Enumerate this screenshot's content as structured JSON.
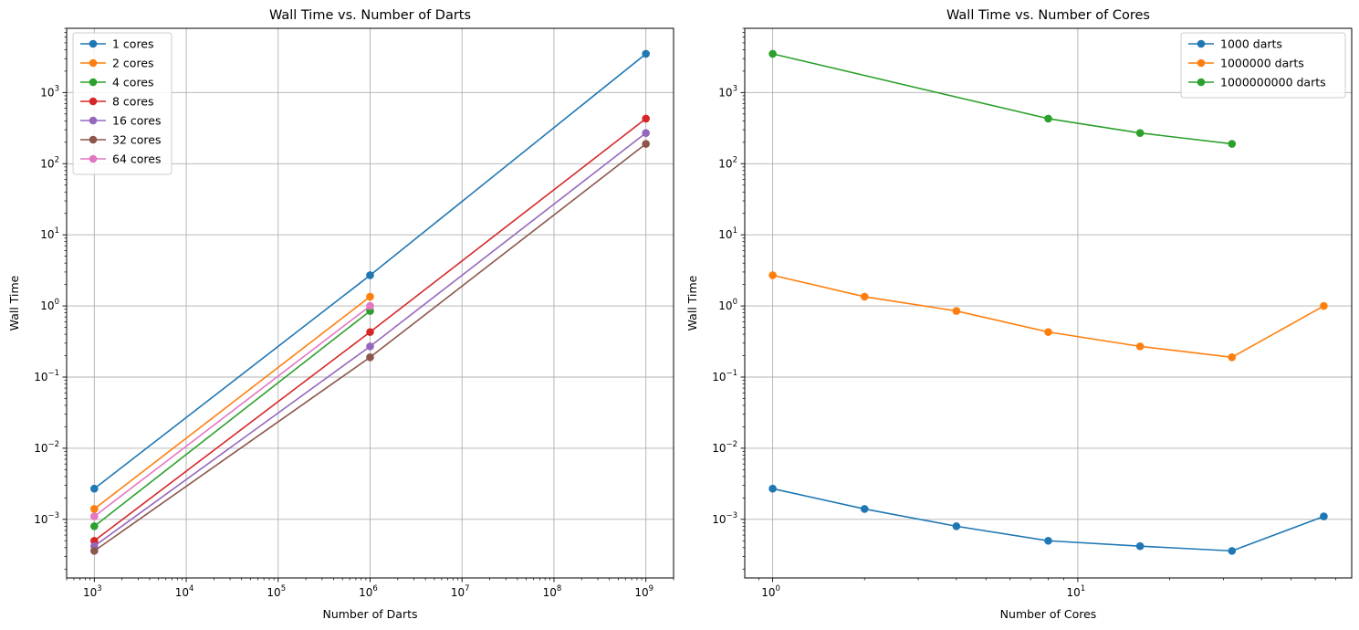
{
  "chart_data": [
    {
      "type": "line",
      "title": "Wall Time vs. Number of Darts",
      "xlabel": "Number of Darts",
      "ylabel": "Wall Time",
      "xscale": "log",
      "yscale": "log",
      "xlim": [
        500,
        2000000000
      ],
      "ylim": [
        0.00015,
        8000
      ],
      "grid": true,
      "legend": "upper-left",
      "x_ticks": [
        {
          "value": 1000,
          "mant": "10",
          "exp": "3"
        },
        {
          "value": 10000,
          "mant": "10",
          "exp": "4"
        },
        {
          "value": 100000,
          "mant": "10",
          "exp": "5"
        },
        {
          "value": 1000000,
          "mant": "10",
          "exp": "6"
        },
        {
          "value": 10000000,
          "mant": "10",
          "exp": "7"
        },
        {
          "value": 100000000,
          "mant": "10",
          "exp": "8"
        },
        {
          "value": 1000000000,
          "mant": "10",
          "exp": "9"
        }
      ],
      "y_ticks": [
        {
          "value": 0.001,
          "mant": "10",
          "exp": "−3"
        },
        {
          "value": 0.01,
          "mant": "10",
          "exp": "−2"
        },
        {
          "value": 0.1,
          "mant": "10",
          "exp": "−1"
        },
        {
          "value": 1,
          "mant": "10",
          "exp": "0"
        },
        {
          "value": 10,
          "mant": "10",
          "exp": "1"
        },
        {
          "value": 100,
          "mant": "10",
          "exp": "2"
        },
        {
          "value": 1000,
          "mant": "10",
          "exp": "3"
        }
      ],
      "series": [
        {
          "name": "1 cores",
          "color": "#1f77b4",
          "x": [
            1000,
            1000000,
            1000000000
          ],
          "y": [
            0.0027,
            2.7,
            3500
          ]
        },
        {
          "name": "2 cores",
          "color": "#ff7f0e",
          "x": [
            1000,
            1000000
          ],
          "y": [
            0.0014,
            1.35
          ]
        },
        {
          "name": "4 cores",
          "color": "#2ca02c",
          "x": [
            1000,
            1000000
          ],
          "y": [
            0.0008,
            0.85
          ]
        },
        {
          "name": "8 cores",
          "color": "#d62728",
          "x": [
            1000,
            1000000,
            1000000000
          ],
          "y": [
            0.0005,
            0.43,
            430
          ]
        },
        {
          "name": "16 cores",
          "color": "#9467bd",
          "x": [
            1000,
            1000000,
            1000000000
          ],
          "y": [
            0.00042,
            0.27,
            270
          ]
        },
        {
          "name": "32 cores",
          "color": "#8c564b",
          "x": [
            1000,
            1000000,
            1000000000
          ],
          "y": [
            0.00036,
            0.19,
            190
          ]
        },
        {
          "name": "64 cores",
          "color": "#e377c2",
          "x": [
            1000,
            1000000
          ],
          "y": [
            0.0011,
            1.0
          ]
        }
      ]
    },
    {
      "type": "line",
      "title": "Wall Time vs. Number of Cores",
      "xlabel": "Number of Cores",
      "ylabel": "Wall Time",
      "xscale": "log",
      "yscale": "log",
      "xlim": [
        0.81,
        79
      ],
      "ylim": [
        0.00015,
        8000
      ],
      "grid": true,
      "legend": "upper-right",
      "x_ticks": [
        {
          "value": 1,
          "mant": "10",
          "exp": "0"
        },
        {
          "value": 10,
          "mant": "10",
          "exp": "1"
        }
      ],
      "x_minor_ticks": [
        2,
        3,
        4,
        5,
        6,
        7,
        8,
        9,
        20,
        30,
        40,
        50,
        60,
        70
      ],
      "y_ticks": [
        {
          "value": 0.001,
          "mant": "10",
          "exp": "−3"
        },
        {
          "value": 0.01,
          "mant": "10",
          "exp": "−2"
        },
        {
          "value": 0.1,
          "mant": "10",
          "exp": "−1"
        },
        {
          "value": 1,
          "mant": "10",
          "exp": "0"
        },
        {
          "value": 10,
          "mant": "10",
          "exp": "1"
        },
        {
          "value": 100,
          "mant": "10",
          "exp": "2"
        },
        {
          "value": 1000,
          "mant": "10",
          "exp": "3"
        }
      ],
      "series": [
        {
          "name": "1000 darts",
          "color": "#1f77b4",
          "x": [
            1,
            2,
            4,
            8,
            16,
            32,
            64
          ],
          "y": [
            0.0027,
            0.0014,
            0.0008,
            0.0005,
            0.00042,
            0.00036,
            0.0011
          ]
        },
        {
          "name": "1000000 darts",
          "color": "#ff7f0e",
          "x": [
            1,
            2,
            4,
            8,
            16,
            32,
            64
          ],
          "y": [
            2.7,
            1.35,
            0.85,
            0.43,
            0.27,
            0.19,
            1.0
          ]
        },
        {
          "name": "1000000000 darts",
          "color": "#2ca02c",
          "x": [
            1,
            8,
            16,
            32
          ],
          "y": [
            3500,
            430,
            270,
            190
          ]
        }
      ]
    }
  ]
}
